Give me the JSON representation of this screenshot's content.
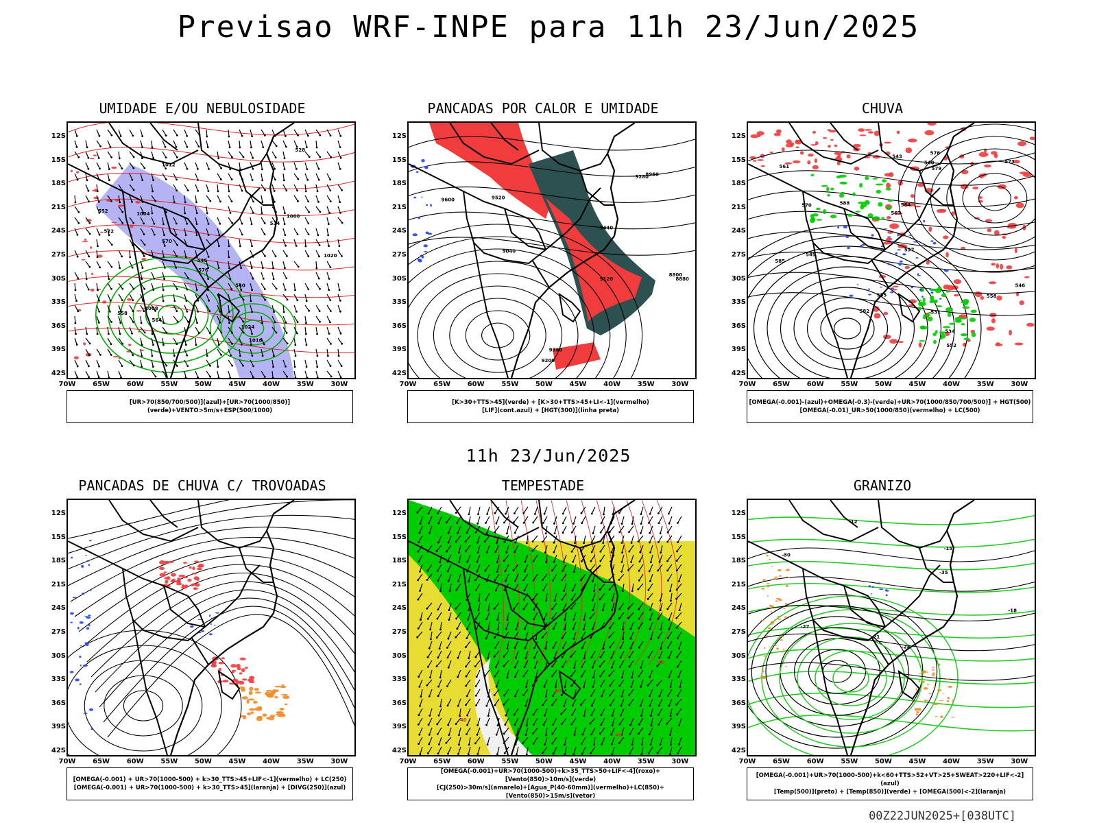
{
  "main_title": "Previsao WRF-INPE  para 11h 23/Jun/2025",
  "mid_title": "11h 23/Jun/2025",
  "footer": "00Z22JUN2025+[038UTC]",
  "lat_labels": [
    "12S",
    "15S",
    "18S",
    "21S",
    "24S",
    "27S",
    "30S",
    "33S",
    "36S",
    "39S",
    "42S"
  ],
  "lon_labels": [
    "70W",
    "65W",
    "60W",
    "55W",
    "50W",
    "45W",
    "40W",
    "35W",
    "30W"
  ],
  "colors": {
    "humid_blue": "#9b9bf0",
    "green": "#00cc00",
    "red": "#f03c3c",
    "orange": "#f08c28",
    "blue": "#1e46f0",
    "darkteal": "#2d5050",
    "yellow": "#e6dc32"
  },
  "panels": [
    {
      "id": "umidade",
      "title": "UMIDADE E/OU NEBULOSIDADE",
      "legend": [
        "[UR>70(850/700/500)](azul)+[UR>70(1000/850)](verde)+VENTO>5m/s+ESP(500/1000)"
      ],
      "labels": [
        "1016",
        "1012",
        "1008",
        "1004",
        "1000",
        "1024",
        "1020",
        "570",
        "576",
        "564",
        "558",
        "552",
        "546",
        "540",
        "534",
        "528",
        "522"
      ]
    },
    {
      "id": "pancadas-calor",
      "title": "PANCADAS POR CALOR E UMIDADE",
      "legend": [
        "[K>30+TTS>45](verde) + [K>30+TTS>45+LI<-1](vermelho)",
        "[LIF](cont.azul) + [HGT(300)](linha preta)"
      ],
      "labels": [
        "9600",
        "9520",
        "9440",
        "9360",
        "9280",
        "9200",
        "9120",
        "9040",
        "8960",
        "8880",
        "8800"
      ]
    },
    {
      "id": "chuva",
      "title": "CHUVA",
      "legend": [
        "[OMEGA(-0.001)-(azul)+OMEGA(-0.3)-(verde)+UR>70(1000/850/700/500)] + HGT(500)",
        "[OMEGA(-0.01)_UR>50(1000/850)(vermelho) + LC(500)"
      ],
      "labels": [
        "588",
        "585",
        "582",
        "579",
        "576",
        "573",
        "570",
        "567",
        "564",
        "561",
        "558",
        "555",
        "552",
        "549",
        "546",
        "543",
        "540",
        "537",
        "534",
        "531"
      ]
    },
    {
      "id": "trovoadas",
      "title": "PANCADAS DE CHUVA C/ TROVOADAS",
      "legend": [
        "[OMEGA(-0.001) + UR>70(1000-500) + k>30_TTS>45+LIF<-1](vermelho) + LC(250)",
        "[OMEGA(-0.001) + UR>70(1000-500) + k>30_TTS>45](laranja) + [DIVG(250)](azul)"
      ],
      "labels": []
    },
    {
      "id": "tempestade",
      "title": "TEMPESTADE",
      "legend": [
        "[OMEGA(-0.001)+UR>70(1000-500)+k>35_TTS>50+LIF<-4](roxo)+[Vento(850)>10m/s](verde)",
        "[CJ(250)>30m/s](amarelo)+[Agua_P(40-60mm)](vermelho)+LC(850)+[Vento(850)>15m/s](vetor)"
      ],
      "labels": [
        "40",
        "40",
        "40",
        "40"
      ]
    },
    {
      "id": "granizo",
      "title": "GRANIZO",
      "legend": [
        "[OMEGA(-0.001)+UR>70(1000-500)+k<60+TTS>52+VT>25+SWEAT>220+LIF<-2](azul)",
        "[Temp(500)](preto) + [Temp(850)](verde) + [OMEGA(500)<-2](laranja)"
      ],
      "labels": [
        "-12",
        "-15",
        "-18",
        "-21",
        "-24",
        "-27",
        "-30",
        "-35"
      ]
    }
  ]
}
